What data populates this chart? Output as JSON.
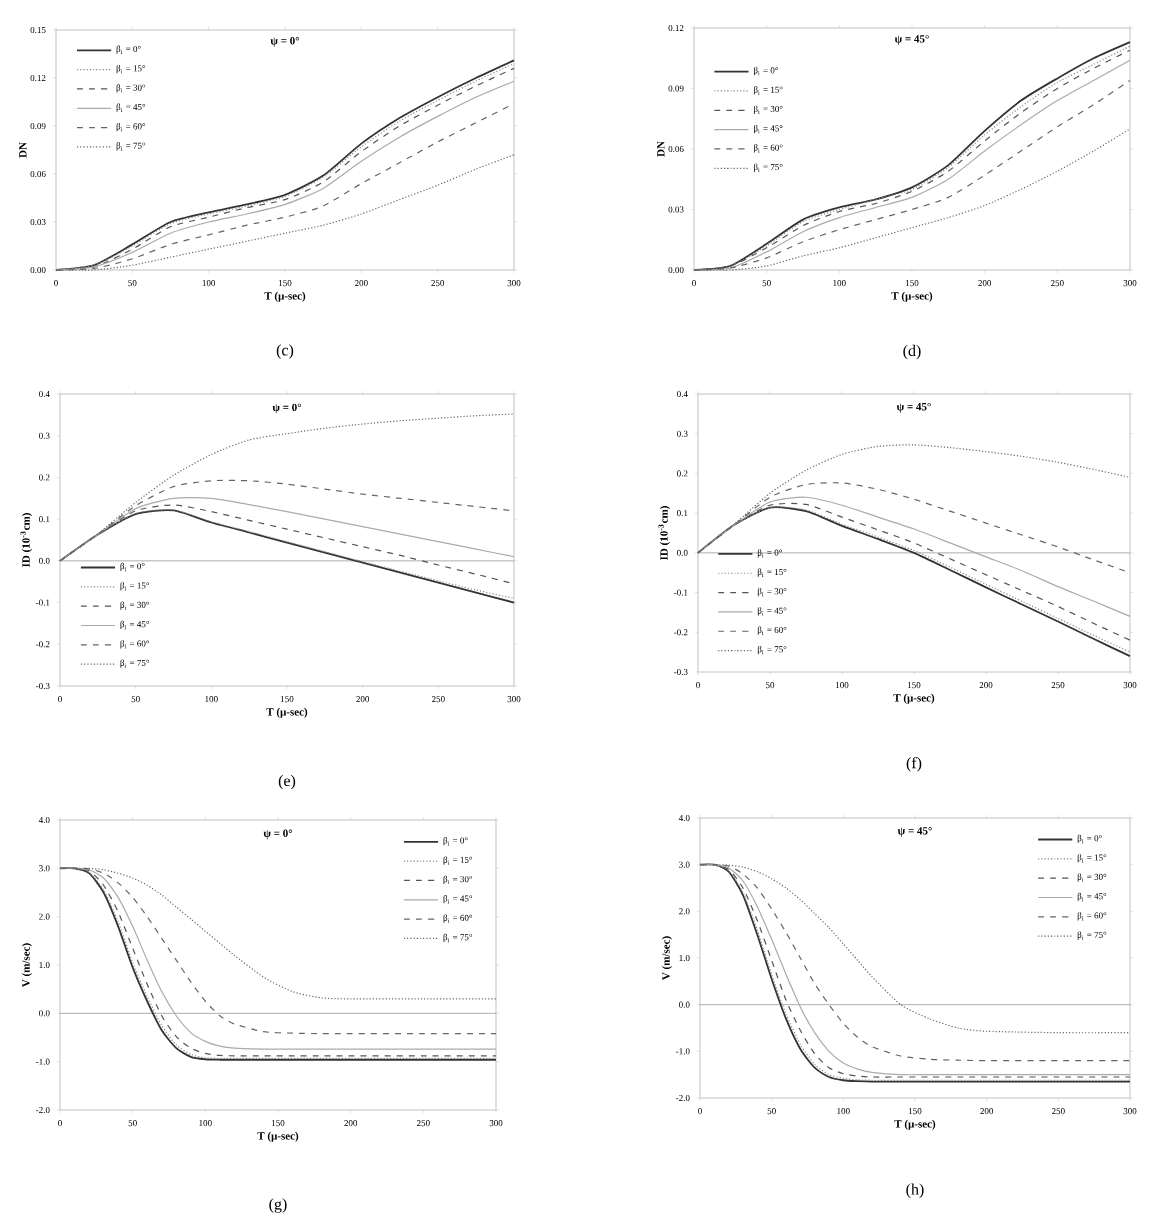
{
  "chart_data": [
    {
      "type": "line",
      "title": "ψ = 0°",
      "xlabel": "T  (μ-sec)",
      "ylabel": "DN",
      "annotations": [
        "(c)"
      ],
      "legend": "top left",
      "marker": "none",
      "x": [
        0,
        25,
        50,
        75,
        100,
        125,
        150,
        175,
        200,
        225,
        250,
        275,
        300
      ],
      "xlim": [
        0,
        300
      ],
      "xticks": [
        0,
        50,
        100,
        150,
        200,
        250,
        300
      ],
      "ylim": [
        0,
        0.15
      ],
      "yticks": [
        {
          "value": 0,
          "label": "0.00"
        },
        0.03,
        0.06,
        0.09,
        0.12,
        0.15
      ],
      "series": [
        {
          "name": "β$_{i}$ = 0°",
          "color": "#333333",
          "line_style": "solid",
          "values": [
            0,
            0.003,
            0.016,
            0.03,
            0.036,
            0.041,
            0.047,
            0.059,
            0.079,
            0.095,
            0.108,
            0.12,
            0.131
          ]
        },
        {
          "name": "β$_{i}$ = 15°",
          "color": "#888888",
          "line_style": "dotted",
          "values": [
            0,
            0.003,
            0.015,
            0.029,
            0.035,
            0.04,
            0.046,
            0.058,
            0.077,
            0.093,
            0.106,
            0.118,
            0.129
          ]
        },
        {
          "name": "β$_{i}$ = 30°",
          "color": "#555555",
          "line_style": "dashed",
          "values": [
            0,
            0.002,
            0.013,
            0.027,
            0.033,
            0.039,
            0.044,
            0.055,
            0.074,
            0.09,
            0.103,
            0.115,
            0.126
          ]
        },
        {
          "name": "β$_{i}$ = 45°",
          "color": "#aaaaaa",
          "line_style": "solid",
          "values": [
            0,
            0.002,
            0.011,
            0.023,
            0.03,
            0.035,
            0.041,
            0.051,
            0.068,
            0.083,
            0.096,
            0.108,
            0.118
          ]
        },
        {
          "name": "β$_{i}$ = 60°",
          "color": "#666666",
          "line_style": "dashed",
          "values": [
            0,
            0.001,
            0.007,
            0.016,
            0.022,
            0.028,
            0.033,
            0.04,
            0.054,
            0.067,
            0.08,
            0.092,
            0.104
          ]
        },
        {
          "name": "β$_{i}$ = 75°",
          "color": "#666666",
          "line_style": "dotted",
          "values": [
            0,
            0.0,
            0.003,
            0.008,
            0.013,
            0.018,
            0.023,
            0.028,
            0.035,
            0.044,
            0.053,
            0.063,
            0.072
          ]
        }
      ]
    },
    {
      "type": "line",
      "title": "ψ = 45°",
      "xlabel": "T  (μ-sec)",
      "ylabel": "DN",
      "annotations": [
        "(d)"
      ],
      "legend": "left",
      "marker": "none",
      "x": [
        0,
        25,
        50,
        75,
        100,
        125,
        150,
        175,
        200,
        225,
        250,
        275,
        300
      ],
      "xlim": [
        0,
        300
      ],
      "xticks": [
        0,
        50,
        100,
        150,
        200,
        250,
        300
      ],
      "ylim": [
        0,
        0.12
      ],
      "yticks": [
        {
          "value": 0,
          "label": "0.00"
        },
        0.03,
        0.06,
        0.09,
        0.12
      ],
      "series": [
        {
          "name": "β$_{i}$ = 0°",
          "color": "#333333",
          "line_style": "solid",
          "values": [
            0,
            0.002,
            0.013,
            0.025,
            0.031,
            0.035,
            0.041,
            0.052,
            0.069,
            0.084,
            0.095,
            0.105,
            0.113
          ]
        },
        {
          "name": "β$_{i}$ = 15°",
          "color": "#888888",
          "line_style": "dotted",
          "values": [
            0,
            0.002,
            0.012,
            0.024,
            0.03,
            0.035,
            0.04,
            0.051,
            0.067,
            0.081,
            0.093,
            0.102,
            0.111
          ]
        },
        {
          "name": "β$_{i}$ = 30°",
          "color": "#555555",
          "line_style": "dashed",
          "values": [
            0,
            0.002,
            0.011,
            0.022,
            0.029,
            0.033,
            0.039,
            0.049,
            0.064,
            0.078,
            0.09,
            0.1,
            0.109
          ]
        },
        {
          "name": "β$_{i}$ = 45°",
          "color": "#aaaaaa",
          "line_style": "solid",
          "values": [
            0,
            0.001,
            0.009,
            0.019,
            0.026,
            0.031,
            0.036,
            0.045,
            0.059,
            0.072,
            0.084,
            0.094,
            0.104
          ]
        },
        {
          "name": "β$_{i}$ = 60°",
          "color": "#666666",
          "line_style": "dashed",
          "values": [
            0,
            0.001,
            0.006,
            0.014,
            0.02,
            0.025,
            0.03,
            0.036,
            0.047,
            0.059,
            0.071,
            0.082,
            0.094
          ]
        },
        {
          "name": "β$_{i}$ = 75°",
          "color": "#666666",
          "line_style": "dotted",
          "values": [
            0,
            0.0,
            0.002,
            0.007,
            0.011,
            0.016,
            0.021,
            0.026,
            0.032,
            0.04,
            0.049,
            0.059,
            0.07
          ]
        }
      ]
    },
    {
      "type": "line",
      "title": "ψ = 0°",
      "xlabel": "T  (μ-sec)",
      "ylabel": "ID (10$^{-3}$cm)",
      "annotations": [
        "(e)"
      ],
      "legend": "bottom left",
      "marker": "none",
      "x": [
        0,
        25,
        50,
        75,
        100,
        125,
        150,
        175,
        200,
        225,
        250,
        275,
        300
      ],
      "xlim": [
        0,
        300
      ],
      "xticks": [
        0,
        50,
        100,
        150,
        200,
        250,
        300
      ],
      "ylim": [
        -0.3,
        0.4
      ],
      "yticks": [
        -0.3,
        -0.2,
        -0.1,
        {
          "value": 0,
          "label": "0.0"
        },
        0.1,
        0.2,
        0.3,
        0.4
      ],
      "ref_lines": [
        {
          "axis": "y",
          "value": 0,
          "color": "#999999"
        }
      ],
      "series": [
        {
          "name": "β$_{i}$ = 0°",
          "color": "#333333",
          "line_style": "solid",
          "values": [
            0,
            0.063,
            0.112,
            0.121,
            0.092,
            0.068,
            0.044,
            0.02,
            -0.004,
            -0.028,
            -0.052,
            -0.076,
            -0.1
          ]
        },
        {
          "name": "β$_{i}$ = 15°",
          "color": "#888888",
          "line_style": "dotted",
          "values": [
            0,
            0.063,
            0.114,
            0.122,
            0.094,
            0.07,
            0.046,
            0.022,
            -0.002,
            -0.025,
            -0.048,
            -0.07,
            -0.09
          ]
        },
        {
          "name": "β$_{i}$ = 30°",
          "color": "#555555",
          "line_style": "dashed",
          "values": [
            0,
            0.063,
            0.12,
            0.134,
            0.118,
            0.097,
            0.076,
            0.055,
            0.034,
            0.013,
            -0.01,
            -0.032,
            -0.055
          ]
        },
        {
          "name": "β$_{i}$ = 45°",
          "color": "#aaaaaa",
          "line_style": "solid",
          "values": [
            0,
            0.064,
            0.125,
            0.15,
            0.15,
            0.135,
            0.118,
            0.1,
            0.082,
            0.064,
            0.046,
            0.028,
            0.01
          ]
        },
        {
          "name": "β$_{i}$ = 60°",
          "color": "#666666",
          "line_style": "dashed",
          "values": [
            0,
            0.064,
            0.132,
            0.178,
            0.192,
            0.192,
            0.184,
            0.172,
            0.16,
            0.15,
            0.14,
            0.13,
            0.12
          ]
        },
        {
          "name": "β$_{i}$ = 75°",
          "color": "#666666",
          "line_style": "dotted",
          "values": [
            0,
            0.065,
            0.14,
            0.205,
            0.255,
            0.29,
            0.305,
            0.318,
            0.328,
            0.336,
            0.342,
            0.348,
            0.352
          ]
        }
      ]
    },
    {
      "type": "line",
      "title": "ψ = 45°",
      "xlabel": "T  (μ-sec)",
      "ylabel": "ID (10$^{-3}$cm)",
      "annotations": [
        "(f)"
      ],
      "legend": "bottom left",
      "marker": "none",
      "x": [
        0,
        25,
        50,
        75,
        100,
        125,
        150,
        175,
        200,
        225,
        250,
        275,
        300
      ],
      "xlim": [
        0,
        300
      ],
      "xticks": [
        0,
        50,
        100,
        150,
        200,
        250,
        300
      ],
      "ylim": [
        -0.3,
        0.4
      ],
      "yticks": [
        -0.3,
        -0.2,
        -0.1,
        {
          "value": 0,
          "label": "0.0"
        },
        0.1,
        0.2,
        0.3,
        0.4
      ],
      "ref_lines": [
        {
          "axis": "y",
          "value": 0,
          "color": "#999999"
        }
      ],
      "series": [
        {
          "name": "β$_{i}$ = 0°",
          "color": "#333333",
          "line_style": "solid",
          "values": [
            0,
            0.07,
            0.114,
            0.105,
            0.068,
            0.035,
            0.0,
            -0.043,
            -0.087,
            -0.13,
            -0.173,
            -0.217,
            -0.26
          ]
        },
        {
          "name": "β$_{i}$ = 15°",
          "color": "#888888",
          "line_style": "dotted",
          "values": [
            0,
            0.07,
            0.114,
            0.108,
            0.072,
            0.04,
            0.006,
            -0.036,
            -0.079,
            -0.122,
            -0.165,
            -0.208,
            -0.25
          ]
        },
        {
          "name": "β$_{i}$ = 30°",
          "color": "#555555",
          "line_style": "dashed",
          "values": [
            0,
            0.07,
            0.12,
            0.122,
            0.09,
            0.058,
            0.025,
            -0.015,
            -0.055,
            -0.095,
            -0.135,
            -0.178,
            -0.22
          ]
        },
        {
          "name": "β$_{i}$ = 45°",
          "color": "#aaaaaa",
          "line_style": "solid",
          "values": [
            0,
            0.07,
            0.128,
            0.14,
            0.12,
            0.09,
            0.06,
            0.025,
            -0.01,
            -0.045,
            -0.085,
            -0.122,
            -0.16
          ]
        },
        {
          "name": "β$_{i}$ = 60°",
          "color": "#666666",
          "line_style": "dashed",
          "values": [
            0,
            0.07,
            0.14,
            0.172,
            0.176,
            0.16,
            0.135,
            0.105,
            0.075,
            0.045,
            0.015,
            -0.018,
            -0.05
          ]
        },
        {
          "name": "β$_{i}$ = 75°",
          "color": "#666666",
          "line_style": "dotted",
          "values": [
            0,
            0.072,
            0.15,
            0.208,
            0.248,
            0.268,
            0.272,
            0.265,
            0.255,
            0.243,
            0.228,
            0.21,
            0.19
          ]
        }
      ]
    },
    {
      "type": "line",
      "title": "ψ = 0°",
      "xlabel": "T  (μ-sec)",
      "ylabel": "V  (m/sec)",
      "annotations": [
        "(g)"
      ],
      "legend": "top right",
      "marker": "none",
      "x": [
        0,
        10,
        20,
        30,
        40,
        50,
        60,
        70,
        80,
        90,
        100,
        110,
        120,
        140,
        160,
        180,
        200,
        250,
        300
      ],
      "xlim": [
        0,
        300
      ],
      "xticks": [
        0,
        50,
        100,
        150,
        200,
        250,
        300
      ],
      "ylim": [
        -2,
        4
      ],
      "yticks": [
        {
          "value": -2,
          "label": "-2.0"
        },
        {
          "value": -1,
          "label": "-1.0"
        },
        {
          "value": 0,
          "label": "0.0"
        },
        {
          "value": 1,
          "label": "1.0"
        },
        {
          "value": 2,
          "label": "2.0"
        },
        {
          "value": 3,
          "label": "3.0"
        },
        {
          "value": 4,
          "label": "4.0"
        }
      ],
      "ref_lines": [
        {
          "axis": "y",
          "value": 0,
          "color": "#999999"
        }
      ],
      "series": [
        {
          "name": "β$_{i}$ = 0°",
          "color": "#333333",
          "line_style": "solid",
          "values": [
            3.0,
            3.0,
            2.9,
            2.5,
            1.8,
            0.95,
            0.25,
            -0.35,
            -0.72,
            -0.9,
            -0.95,
            -0.96,
            -0.96,
            -0.96,
            -0.96,
            -0.96,
            -0.96,
            -0.96,
            -0.96
          ]
        },
        {
          "name": "β$_{i}$ = 15°",
          "color": "#888888",
          "line_style": "dotted",
          "values": [
            3.0,
            3.0,
            2.92,
            2.55,
            1.9,
            1.05,
            0.35,
            -0.25,
            -0.65,
            -0.85,
            -0.92,
            -0.93,
            -0.93,
            -0.93,
            -0.93,
            -0.93,
            -0.93,
            -0.93,
            -0.93
          ]
        },
        {
          "name": "β$_{i}$ = 30°",
          "color": "#555555",
          "line_style": "dashed",
          "values": [
            3.0,
            3.0,
            2.95,
            2.65,
            2.1,
            1.35,
            0.6,
            -0.05,
            -0.48,
            -0.72,
            -0.83,
            -0.87,
            -0.88,
            -0.88,
            -0.88,
            -0.88,
            -0.88,
            -0.88,
            -0.88
          ]
        },
        {
          "name": "β$_{i}$ = 45°",
          "color": "#aaaaaa",
          "line_style": "solid",
          "values": [
            3.0,
            3.0,
            2.97,
            2.8,
            2.4,
            1.8,
            1.1,
            0.45,
            -0.05,
            -0.4,
            -0.58,
            -0.68,
            -0.72,
            -0.74,
            -0.74,
            -0.74,
            -0.74,
            -0.74,
            -0.74
          ]
        },
        {
          "name": "β$_{i}$ = 60°",
          "color": "#666666",
          "line_style": "dashed",
          "values": [
            3.0,
            3.0,
            2.99,
            2.9,
            2.7,
            2.4,
            2.0,
            1.55,
            1.1,
            0.65,
            0.25,
            -0.05,
            -0.22,
            -0.38,
            -0.41,
            -0.42,
            -0.42,
            -0.42,
            -0.42
          ]
        },
        {
          "name": "β$_{i}$ = 75°",
          "color": "#666666",
          "line_style": "dotted",
          "values": [
            3.0,
            3.0,
            3.0,
            2.97,
            2.9,
            2.8,
            2.65,
            2.45,
            2.2,
            1.95,
            1.7,
            1.45,
            1.2,
            0.75,
            0.45,
            0.32,
            0.3,
            0.3,
            0.3
          ]
        }
      ]
    },
    {
      "type": "line",
      "title": "ψ = 45°",
      "xlabel": "T  (μ-sec)",
      "ylabel": "V  (m/sec)",
      "annotations": [
        "(h)"
      ],
      "legend": "top right",
      "marker": "none",
      "x": [
        0,
        10,
        20,
        30,
        40,
        50,
        60,
        70,
        80,
        90,
        100,
        110,
        120,
        140,
        160,
        180,
        200,
        250,
        300
      ],
      "xlim": [
        0,
        300
      ],
      "xticks": [
        0,
        50,
        100,
        150,
        200,
        250,
        300
      ],
      "ylim": [
        -2,
        4
      ],
      "yticks": [
        {
          "value": -2,
          "label": "-2.0"
        },
        {
          "value": -1,
          "label": "-1.0"
        },
        {
          "value": 0,
          "label": "0.0"
        },
        {
          "value": 1,
          "label": "1.0"
        },
        {
          "value": 2,
          "label": "2.0"
        },
        {
          "value": 3,
          "label": "3.0"
        },
        {
          "value": 4,
          "label": "4.0"
        }
      ],
      "ref_lines": [
        {
          "axis": "y",
          "value": 0,
          "color": "#999999"
        }
      ],
      "series": [
        {
          "name": "β$_{i}$ = 0°",
          "color": "#333333",
          "line_style": "solid",
          "values": [
            3.0,
            3.0,
            2.85,
            2.35,
            1.5,
            0.55,
            -0.3,
            -0.95,
            -1.35,
            -1.55,
            -1.62,
            -1.64,
            -1.65,
            -1.65,
            -1.65,
            -1.65,
            -1.65,
            -1.65,
            -1.65
          ]
        },
        {
          "name": "β$_{i}$ = 15°",
          "color": "#888888",
          "line_style": "dotted",
          "values": [
            3.0,
            3.0,
            2.87,
            2.4,
            1.6,
            0.65,
            -0.2,
            -0.85,
            -1.28,
            -1.5,
            -1.58,
            -1.61,
            -1.62,
            -1.62,
            -1.62,
            -1.62,
            -1.62,
            -1.62,
            -1.62
          ]
        },
        {
          "name": "β$_{i}$ = 30°",
          "color": "#555555",
          "line_style": "dashed",
          "values": [
            3.0,
            3.0,
            2.9,
            2.5,
            1.8,
            0.95,
            0.1,
            -0.55,
            -1.05,
            -1.35,
            -1.48,
            -1.53,
            -1.55,
            -1.55,
            -1.55,
            -1.55,
            -1.55,
            -1.55,
            -1.55
          ]
        },
        {
          "name": "β$_{i}$ = 45°",
          "color": "#aaaaaa",
          "line_style": "solid",
          "values": [
            3.0,
            3.0,
            2.93,
            2.65,
            2.1,
            1.4,
            0.65,
            -0.05,
            -0.6,
            -1.0,
            -1.25,
            -1.38,
            -1.45,
            -1.5,
            -1.5,
            -1.5,
            -1.5,
            -1.5,
            -1.5
          ]
        },
        {
          "name": "β$_{i}$ = 60°",
          "color": "#666666",
          "line_style": "dashed",
          "values": [
            3.0,
            3.0,
            2.97,
            2.8,
            2.5,
            2.05,
            1.55,
            1.0,
            0.45,
            0.0,
            -0.4,
            -0.7,
            -0.9,
            -1.1,
            -1.17,
            -1.19,
            -1.2,
            -1.2,
            -1.2
          ]
        },
        {
          "name": "β$_{i}$ = 75°",
          "color": "#666666",
          "line_style": "dotted",
          "values": [
            3.0,
            3.0,
            2.99,
            2.95,
            2.85,
            2.7,
            2.5,
            2.25,
            1.95,
            1.65,
            1.3,
            0.95,
            0.6,
            0.0,
            -0.3,
            -0.5,
            -0.57,
            -0.6,
            -0.6
          ]
        }
      ]
    }
  ]
}
